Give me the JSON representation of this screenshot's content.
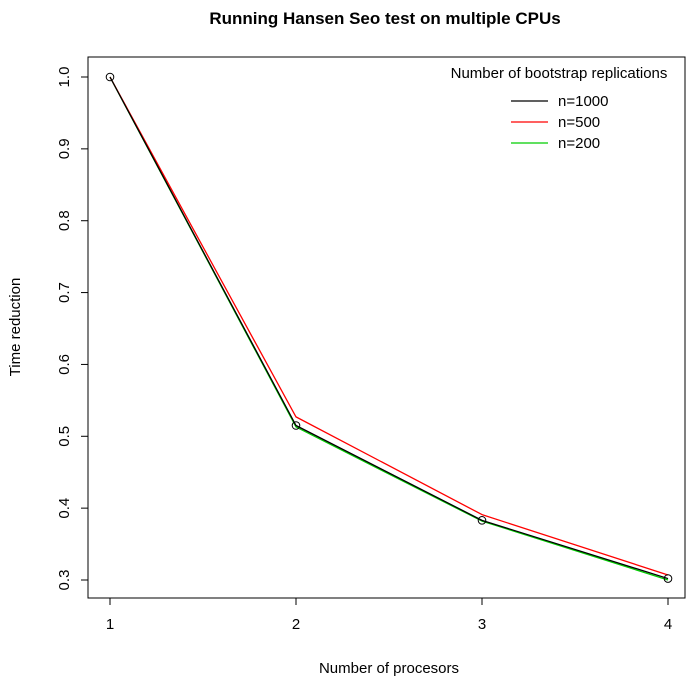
{
  "chart_data": {
    "type": "line",
    "title": "Running Hansen Seo test on multiple CPUs",
    "xlabel": "Number of procesors",
    "ylabel": "Time reduction",
    "x": [
      1,
      2,
      3,
      4
    ],
    "xlim": [
      1,
      4
    ],
    "ylim": [
      0.3,
      1.0
    ],
    "x_ticks": [
      "1",
      "2",
      "3",
      "4"
    ],
    "y_ticks": [
      "0.3",
      "0.4",
      "0.5",
      "0.6",
      "0.7",
      "0.8",
      "0.9",
      "1.0"
    ],
    "grid": false,
    "legend": {
      "title": "Number of bootstrap replications",
      "placement": "top-right"
    },
    "series": [
      {
        "name": "n=1000",
        "color": "#000000",
        "values": [
          1.0,
          0.515,
          0.383,
          0.302
        ],
        "markers": true
      },
      {
        "name": "n=500",
        "color": "#ff0000",
        "values": [
          1.0,
          0.527,
          0.391,
          0.307
        ],
        "markers": false
      },
      {
        "name": "n=200",
        "color": "#00cd00",
        "values": [
          1.0,
          0.513,
          0.382,
          0.3
        ],
        "markers": false
      }
    ]
  }
}
